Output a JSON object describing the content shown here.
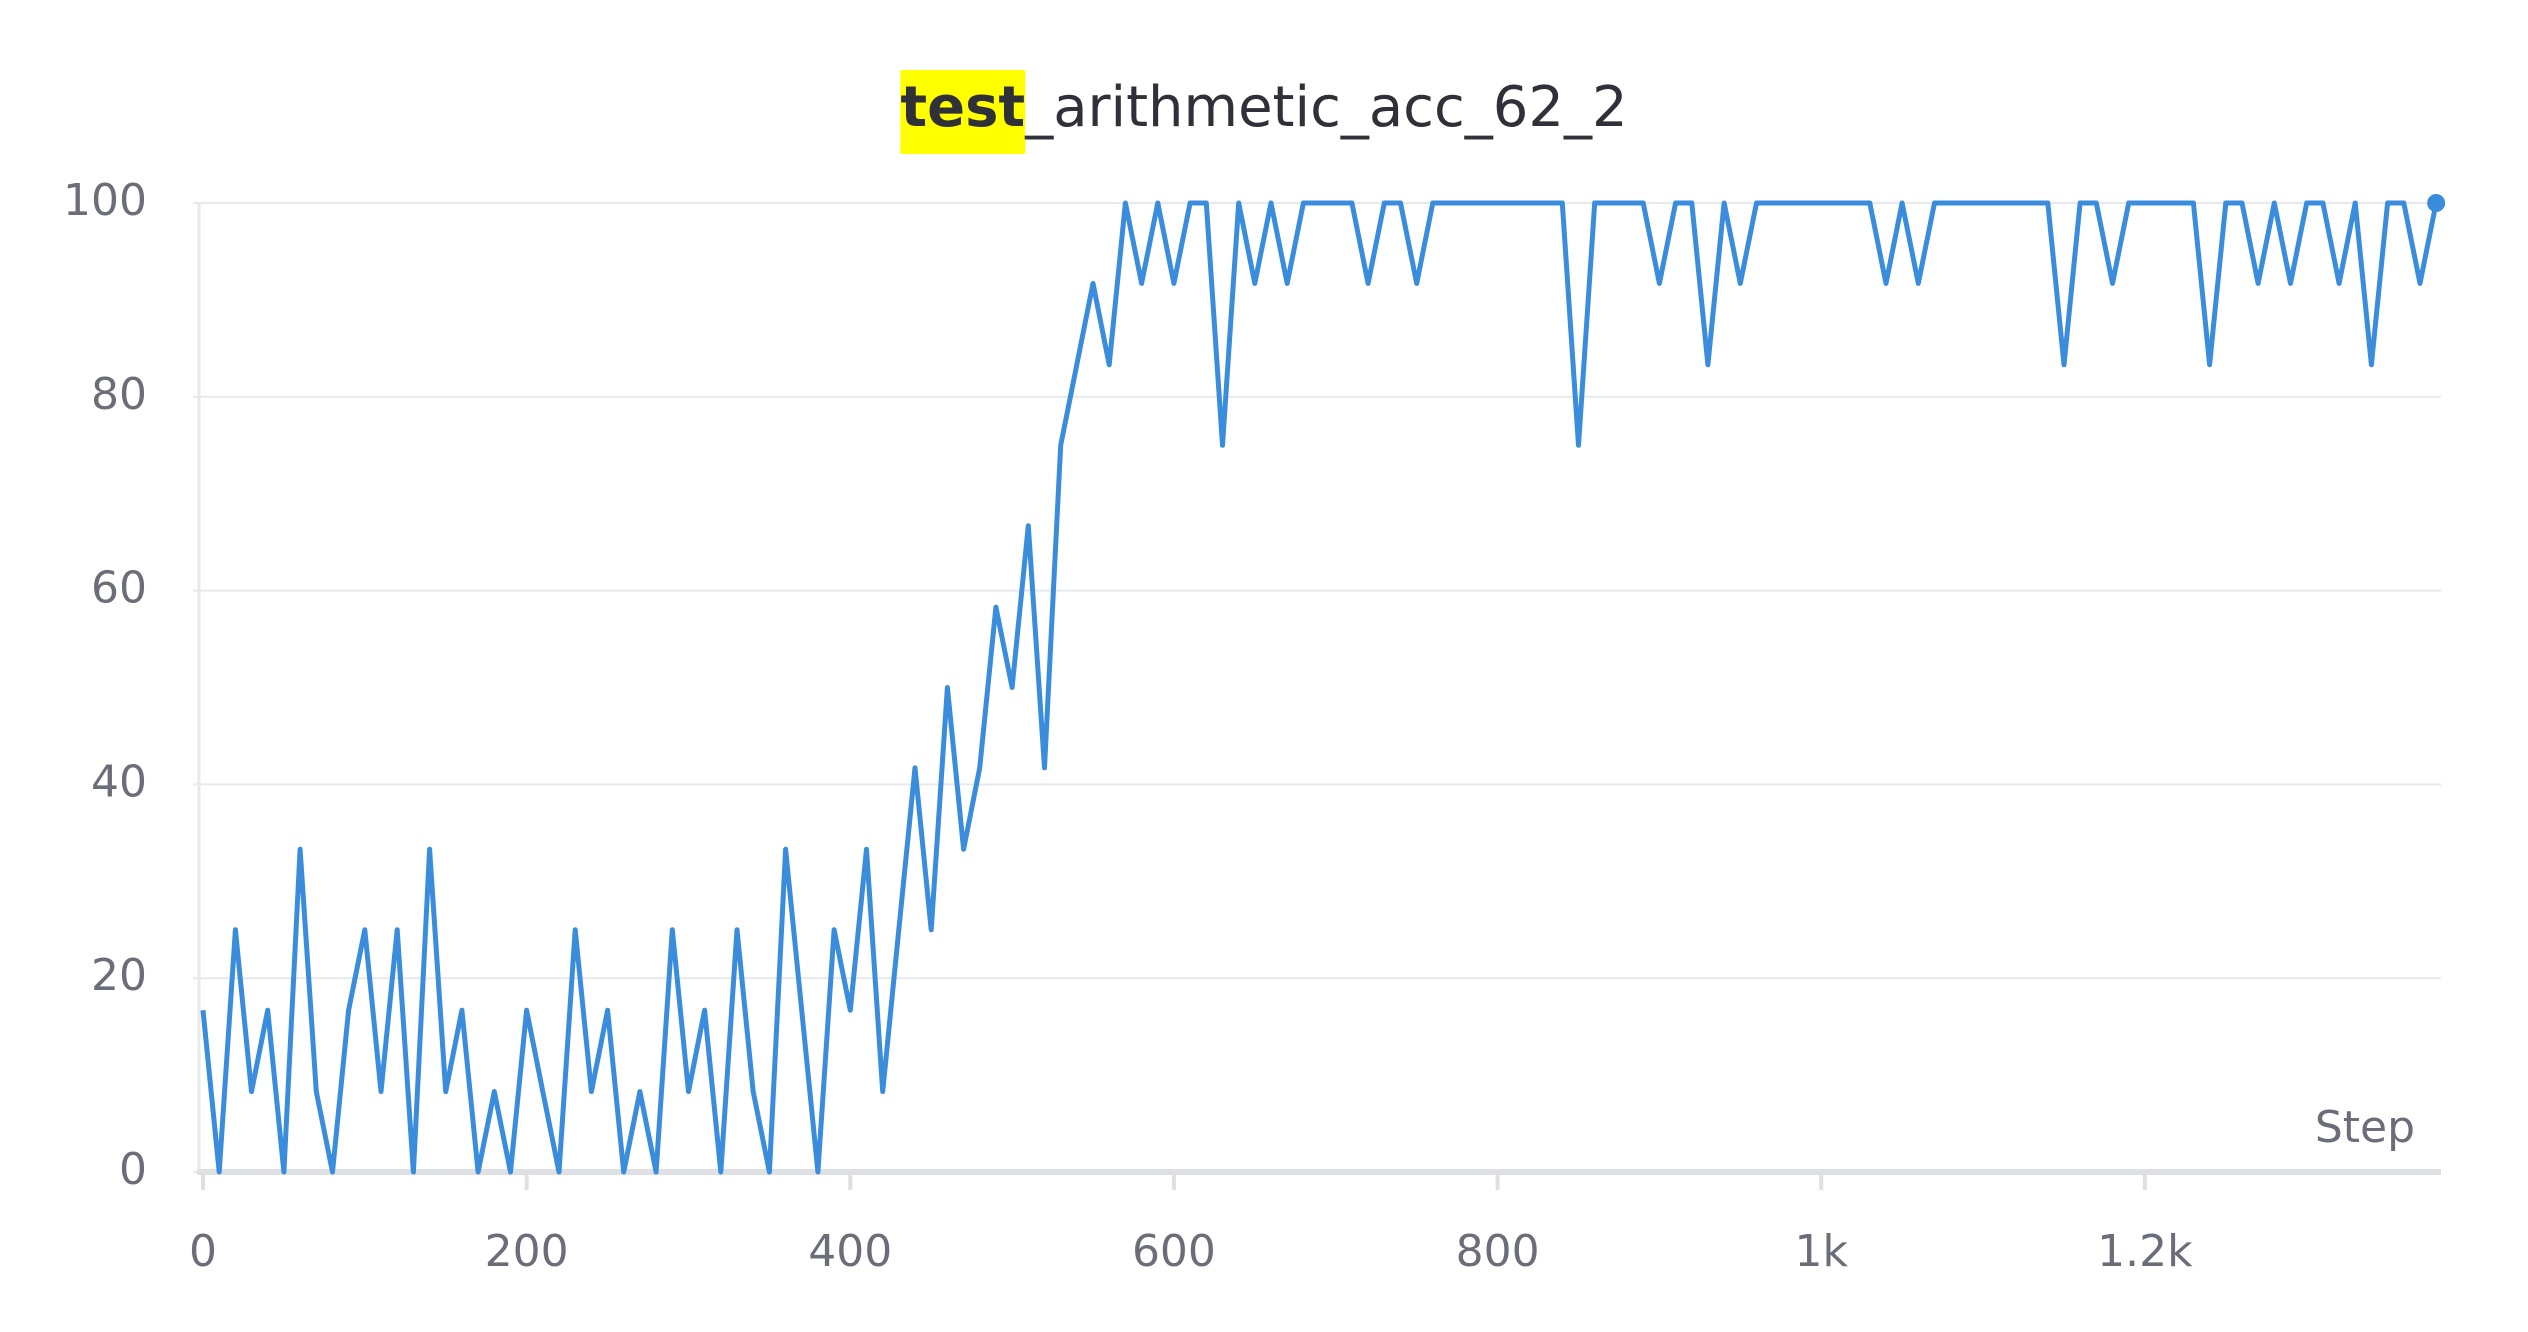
{
  "chart_data": {
    "type": "line",
    "title_parts": [
      "test",
      "_arithmetic_acc_62_2"
    ],
    "x_label": "Step",
    "x": [
      0,
      10,
      20,
      30,
      40,
      50,
      60,
      70,
      80,
      90,
      100,
      110,
      120,
      130,
      140,
      150,
      160,
      170,
      180,
      190,
      200,
      210,
      220,
      230,
      240,
      250,
      260,
      270,
      280,
      290,
      300,
      310,
      320,
      330,
      340,
      350,
      360,
      370,
      380,
      390,
      400,
      410,
      420,
      430,
      440,
      450,
      460,
      470,
      480,
      490,
      500,
      510,
      520,
      530,
      540,
      550,
      560,
      570,
      580,
      590,
      600,
      610,
      620,
      630,
      640,
      650,
      660,
      670,
      680,
      690,
      700,
      710,
      720,
      730,
      740,
      750,
      760,
      770,
      780,
      790,
      800,
      810,
      820,
      830,
      840,
      850,
      860,
      870,
      880,
      890,
      900,
      910,
      920,
      930,
      940,
      950,
      960,
      970,
      980,
      990,
      1000,
      1010,
      1020,
      1030,
      1040,
      1050,
      1060,
      1070,
      1080,
      1090,
      1100,
      1110,
      1120,
      1130,
      1140,
      1150,
      1160,
      1170,
      1180,
      1190,
      1200,
      1210,
      1220,
      1230,
      1240,
      1250,
      1260,
      1270,
      1280,
      1290,
      1300,
      1310,
      1320,
      1330,
      1340,
      1350,
      1360,
      1370,
      1380
    ],
    "values": [
      16.7,
      0,
      25,
      8.3,
      16.7,
      0,
      33.3,
      8.3,
      0,
      16.7,
      25,
      8.3,
      25,
      0,
      33.3,
      8.3,
      16.7,
      0,
      8.3,
      0,
      16.7,
      8.3,
      0,
      25,
      8.3,
      16.7,
      0,
      8.3,
      0,
      25,
      8.3,
      16.7,
      0,
      25,
      8.3,
      0,
      33.3,
      16.7,
      0,
      25,
      16.7,
      33.3,
      8.3,
      25,
      41.7,
      25,
      50,
      33.3,
      41.7,
      58.3,
      50,
      66.7,
      41.7,
      75,
      83.3,
      91.7,
      83.3,
      100,
      91.7,
      100,
      91.7,
      100,
      100,
      75,
      100,
      91.7,
      100,
      91.7,
      100,
      100,
      100,
      100,
      91.7,
      100,
      100,
      91.7,
      100,
      100,
      100,
      100,
      100,
      100,
      100,
      100,
      100,
      75,
      100,
      100,
      100,
      100,
      91.7,
      100,
      100,
      83.3,
      100,
      91.7,
      100,
      100,
      100,
      100,
      100,
      100,
      100,
      100,
      91.7,
      100,
      91.7,
      100,
      100,
      100,
      100,
      100,
      100,
      100,
      100,
      83.3,
      100,
      100,
      91.7,
      100,
      100,
      100,
      100,
      100,
      83.3,
      100,
      100,
      91.7,
      100,
      91.7,
      100,
      100,
      91.7,
      100,
      83.3,
      100,
      100,
      91.7,
      100
    ],
    "color": "#3a8ddd",
    "xlim": [
      0,
      1383
    ],
    "ylim": [
      0,
      100
    ],
    "xticks": [
      0,
      200,
      400,
      600,
      800,
      {
        "value": 1000,
        "label": "1k"
      },
      {
        "value": 1200,
        "label": "1.2k"
      }
    ],
    "yticks": [
      0,
      20,
      40,
      60,
      80,
      100
    ],
    "grid": true
  }
}
